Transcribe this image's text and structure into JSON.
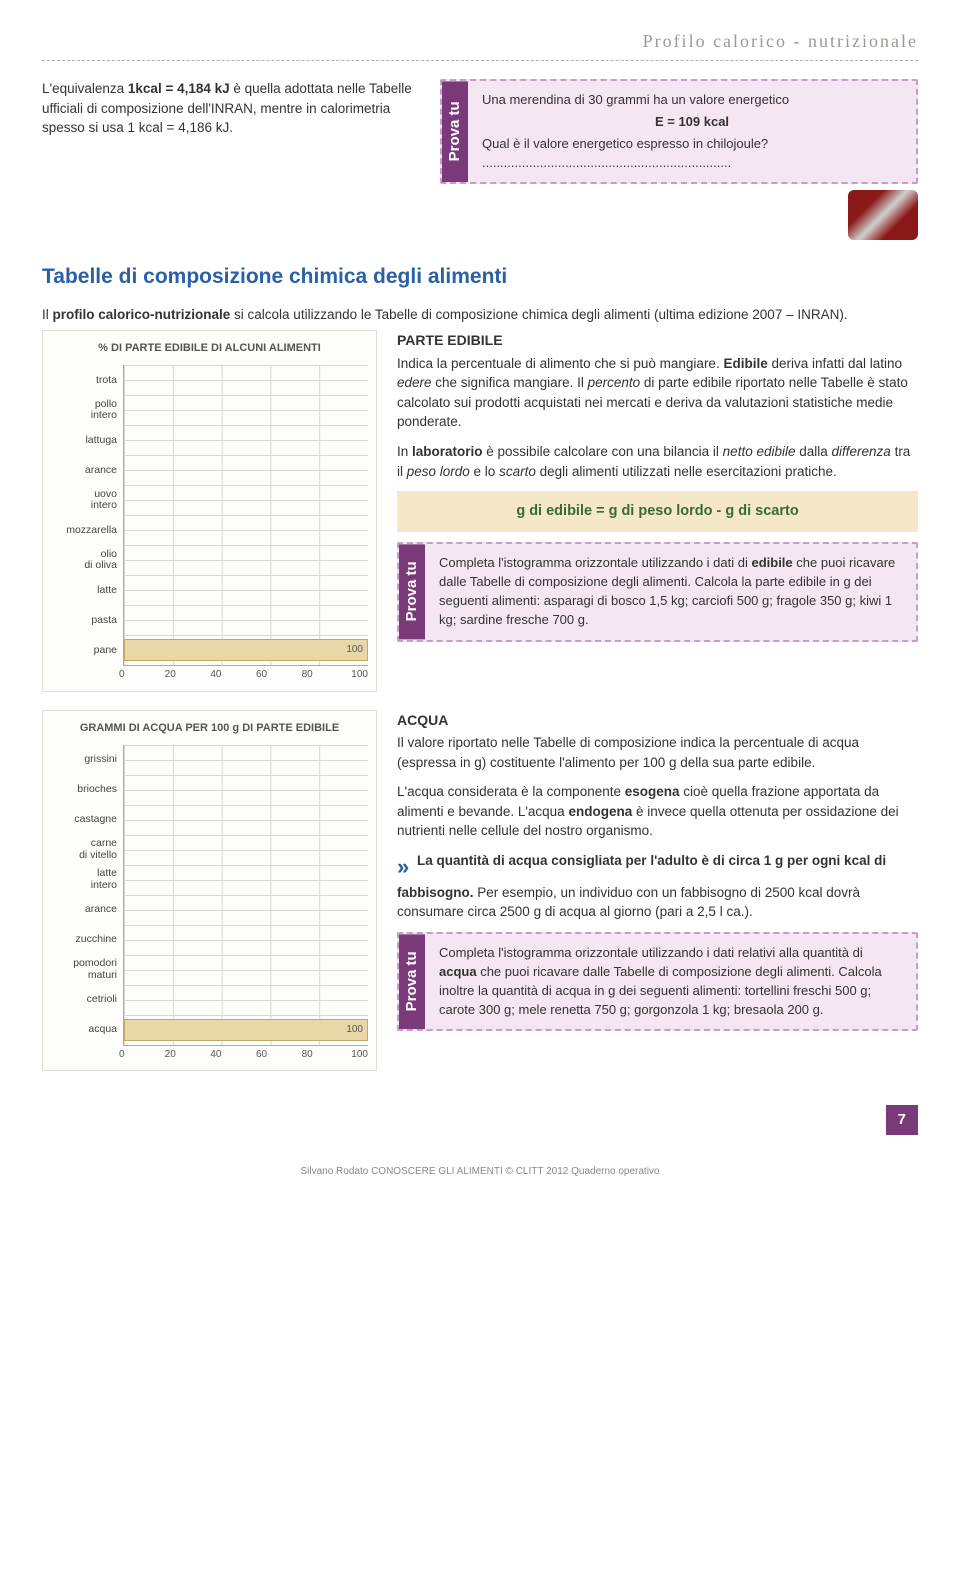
{
  "header": {
    "title": "Profilo calorico - nutrizionale"
  },
  "intro": {
    "text_before": "L'equivalenza ",
    "bold1": "1kcal = 4,184 kJ",
    "text_mid": " è quella adottata nelle Tabelle ufficiali di composizione dell'INRAN, mentre in calorimetria spesso si usa 1 kcal = 4,186 kJ."
  },
  "prova1": {
    "label": "Prova tu",
    "line1": "Una merendina di 30 grammi ha un valore energetico",
    "eq": "E = 109 kcal",
    "line2": "Qual è il valore energetico espresso in chilojoule?",
    "dots": "....................................................................."
  },
  "section_title": "Tabelle di composizione chimica degli alimenti",
  "profile_intro": {
    "t1": "Il ",
    "b1": "profilo calorico-nutrizionale",
    "t2": " si calcola utilizzando le Tabelle di composizione chimica degli alimenti (ultima edizione 2007 – INRAN)."
  },
  "chart1": {
    "type": "bar-horizontal",
    "title": "% DI PARTE EDIBILE DI ALCUNI ALIMENTI",
    "categories": [
      "trota",
      "pollo intero",
      "lattuga",
      "arance",
      "uovo intero",
      "mozzarella",
      "olio di oliva",
      "latte",
      "pasta",
      "pane"
    ],
    "values": [
      null,
      null,
      null,
      null,
      null,
      null,
      null,
      null,
      null,
      100
    ],
    "xmin": 0,
    "xmax": 100,
    "xticks": [
      0,
      20,
      40,
      60,
      80,
      100
    ],
    "bar_fill": "#e8d8a8",
    "bar_border": "#c0a868",
    "grid_color": "#d8d8d0",
    "bar_label_100": "100"
  },
  "parte_edibile": {
    "heading": "PARTE EDIBILE",
    "p1_a": "Indica la percentuale di alimento che si può mangiare. ",
    "p1_b": "Edibile",
    "p1_c": " deriva infatti dal latino ",
    "p1_d": "edere",
    "p1_e": " che significa mangiare. Il ",
    "p1_f": "percento",
    "p1_g": " di parte edibile riportato nelle Tabelle è stato calcolato sui prodotti acquistati nei mercati e deriva da valutazioni statistiche medie ponderate.",
    "p2_a": "In ",
    "p2_b": "laboratorio",
    "p2_c": " è possibile calcolare con una bilancia il ",
    "p2_d": "netto edibile",
    "p2_e": " dalla ",
    "p2_f": "differenza",
    "p2_g": " tra il ",
    "p2_h": "peso lordo",
    "p2_i": " e lo ",
    "p2_j": "scarto",
    "p2_k": " degli alimenti utilizzati nelle esercitazioni pratiche."
  },
  "formula": "g di edibile = g di peso lordo - g di scarto",
  "prova2": {
    "label": "Prova tu",
    "text_a": "Completa l'istogramma orizzontale utilizzando i dati di ",
    "text_b": "edibile",
    "text_c": " che puoi ricavare dalle Tabelle di composizione degli alimenti. Calcola la parte edibile in g dei seguenti alimenti: asparagi di bosco 1,5 kg; carciofi 500 g; fragole 350 g; kiwi 1 kg; sardine fresche 700 g."
  },
  "chart2": {
    "type": "bar-horizontal",
    "title": "GRAMMI DI ACQUA PER 100 g DI PARTE EDIBILE",
    "categories": [
      "grissini",
      "brioches",
      "castagne",
      "carne di vitello",
      "latte intero",
      "arance",
      "zucchine",
      "pomodori maturi",
      "cetrioli",
      "acqua"
    ],
    "values": [
      null,
      null,
      null,
      null,
      null,
      null,
      null,
      null,
      null,
      100
    ],
    "xmin": 0,
    "xmax": 100,
    "xticks": [
      0,
      20,
      40,
      60,
      80,
      100
    ],
    "bar_fill": "#e8d8a8",
    "bar_border": "#c0a868",
    "grid_color": "#d8d8d0",
    "bar_label_100": "100"
  },
  "acqua": {
    "heading": "ACQUA",
    "p1": "Il valore riportato nelle Tabelle di composizione indica la percentuale di acqua (espressa in g) costituente l'alimento per 100 g della sua parte edibile.",
    "p2_a": "L'acqua considerata è la componente ",
    "p2_b": "esogena",
    "p2_c": " cioè quella frazione apportata da alimenti e bevande. L'acqua ",
    "p2_d": "endogena",
    "p2_e": " è invece quella ottenuta per ossidazione dei nutrienti nelle cellule del nostro organismo.",
    "quote_a": "La quantità di acqua consigliata per l'adulto è di circa 1 g per ogni kcal di fabbisogno.",
    "quote_b": " Per esempio, un individuo con un fabbisogno di 2500 kcal dovrà consumare circa 2500 g di acqua al giorno (pari a 2,5 l ca.)."
  },
  "prova3": {
    "label": "Prova tu",
    "text_a": "Completa l'istogramma orizzontale utilizzando i dati relativi alla quantità di ",
    "text_b": "acqua",
    "text_c": " che puoi ricavare dalle Tabelle di composizione degli alimenti. Calcola inoltre la quantità di acqua in g dei seguenti alimenti: tortellini freschi 500 g; carote 300 g; mele renetta 750 g; gorgonzola 1 kg; bresaola 200 g."
  },
  "page_number": "7",
  "footer": "Silvano Rodato CONOSCERE GLI ALIMENTI © CLITT 2012 Quaderno operativo"
}
